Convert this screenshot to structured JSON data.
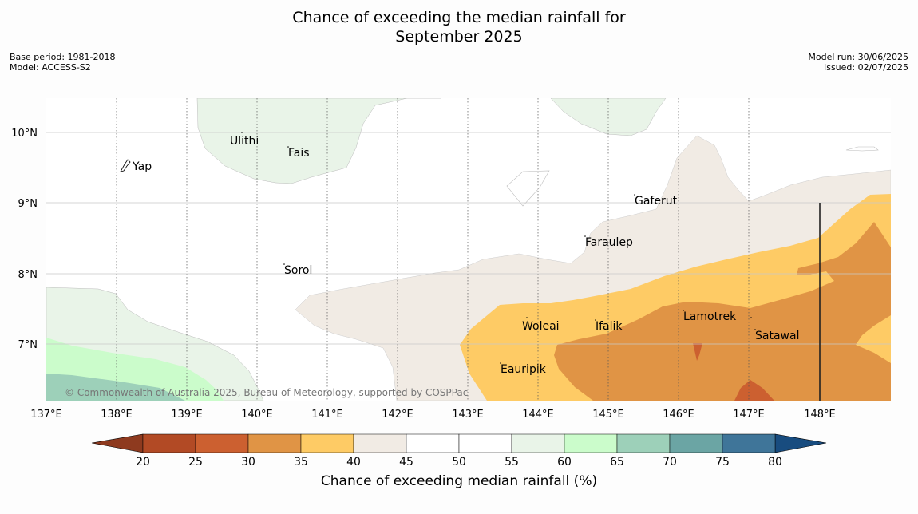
{
  "title_line1": "Chance of exceeding the median rainfall for",
  "title_line2": "September 2025",
  "meta_left": [
    "Base period: 1981-2018",
    "Model: ACCESS-S2"
  ],
  "meta_right": [
    "Model run: 30/06/2025",
    "Issued: 02/07/2025"
  ],
  "credit": "© Commonwealth of Australia 2025, Bureau of Meteorology, supported by COSPPac",
  "x_ticks": [
    "137°E",
    "138°E",
    "139°E",
    "140°E",
    "141°E",
    "142°E",
    "143°E",
    "144°E",
    "145°E",
    "146°E",
    "147°E",
    "148°E"
  ],
  "y_ticks": [
    "10°N",
    "9°N",
    "8°N",
    "7°N"
  ],
  "places": [
    "Yap",
    "Ulithi",
    "Fais",
    "Gaferut",
    "Faraulep",
    "Sorol",
    "Woleai",
    "Ifalik",
    "Lamotrek",
    "Satawal",
    "Eauripik"
  ],
  "colorbar": {
    "title": "Chance of exceeding median rainfall (%)",
    "ticks": [
      "20",
      "25",
      "30",
      "35",
      "40",
      "45",
      "50",
      "55",
      "60",
      "65",
      "70",
      "75",
      "80"
    ],
    "colors": [
      "#b24a25",
      "#cc6030",
      "#e09445",
      "#fecb65",
      "#f1ebe4",
      "#ffffff",
      "#ffffff",
      "#e9f4e8",
      "#cbfccb",
      "#9dd0b9",
      "#6ba5a4",
      "#3f7599"
    ],
    "under_color": "#8e3a1f",
    "over_color": "#184c7f"
  }
}
